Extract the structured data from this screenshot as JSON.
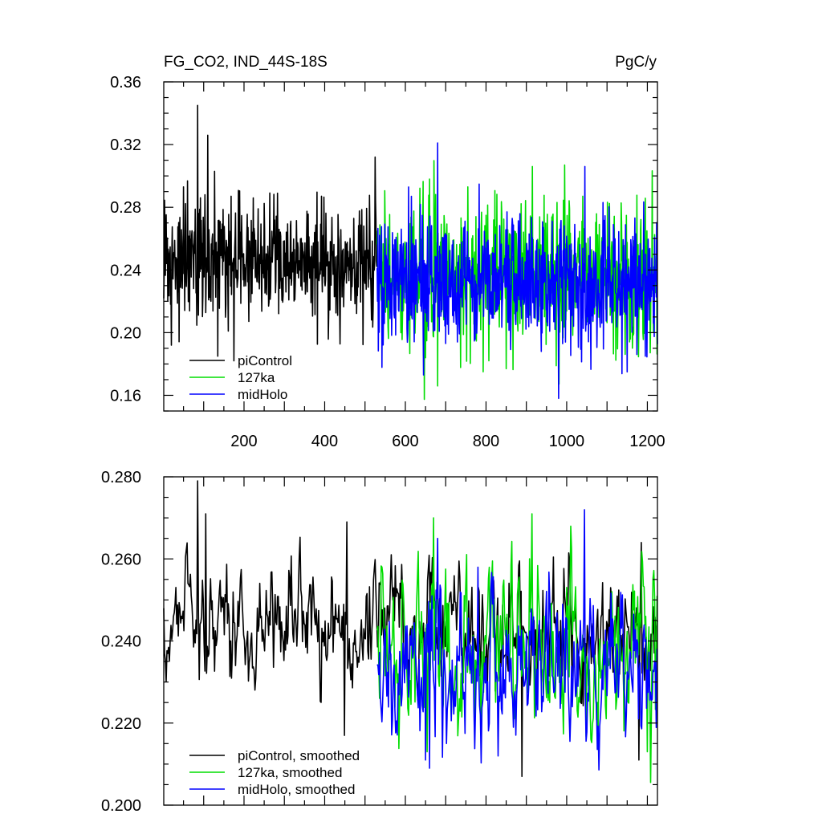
{
  "title_left": "FG_CO2, IND_44S-18S",
  "title_right": "PgC/y",
  "colors": {
    "piControl": "#000000",
    "127ka": "#00dd00",
    "midHolo": "#0000ff"
  },
  "chart_data": [
    {
      "type": "line",
      "panel": "raw annual series",
      "xlim": [
        1,
        1225
      ],
      "ylim": [
        0.15,
        0.36
      ],
      "x_ticks": [
        200,
        400,
        600,
        800,
        1000,
        1200
      ],
      "x_tick_labels": [
        "200",
        "400",
        "600",
        "800",
        "1000",
        "1200"
      ],
      "y_ticks": [
        0.16,
        0.2,
        0.24,
        0.28,
        0.32,
        0.36
      ],
      "y_tick_labels": [
        "0.16",
        "0.20",
        "0.24",
        "0.28",
        "0.32",
        "0.36"
      ],
      "legend": {
        "placement": "bottom-left",
        "entries": [
          "piControl",
          "127ka",
          "midHolo"
        ]
      },
      "series": [
        {
          "name": "piControl",
          "color": "#000000",
          "x_range": [
            1,
            530
          ],
          "step": 1,
          "mean": 0.245,
          "std": 0.019,
          "peaks": [
            [
              85,
              0.345
            ],
            [
              110,
              0.326
            ],
            [
              50,
              0.293
            ],
            [
              525,
              0.312
            ]
          ],
          "troughs": [
            [
              20,
              0.192
            ],
            [
              135,
              0.185
            ],
            [
              175,
              0.182
            ]
          ]
        },
        {
          "name": "127ka",
          "color": "#00dd00",
          "x_range": [
            530,
            1225
          ],
          "step": 1,
          "mean": 0.236,
          "std": 0.022,
          "peaks": [
            [
              915,
              0.306
            ],
            [
              995,
              0.307
            ],
            [
              660,
              0.298
            ],
            [
              755,
              0.293
            ]
          ],
          "troughs": [
            [
              680,
              0.166
            ],
            [
              650,
              0.184
            ],
            [
              850,
              0.177
            ]
          ]
        },
        {
          "name": "midHolo",
          "color": "#0000ff",
          "x_range": [
            530,
            1225
          ],
          "step": 1,
          "mean": 0.233,
          "std": 0.02,
          "peaks": [
            [
              680,
              0.321
            ],
            [
              1045,
              0.306
            ],
            [
              615,
              0.287
            ],
            [
              1090,
              0.283
            ]
          ],
          "troughs": [
            [
              645,
              0.173
            ],
            [
              1150,
              0.175
            ],
            [
              1195,
              0.185
            ]
          ]
        }
      ]
    },
    {
      "type": "line",
      "panel": "smoothed series",
      "xlim": [
        1,
        1225
      ],
      "ylim": [
        0.2,
        0.28
      ],
      "x_ticks": [
        200,
        400,
        600,
        800,
        1000,
        1200
      ],
      "y_ticks": [
        0.2,
        0.22,
        0.24,
        0.26,
        0.28
      ],
      "y_tick_labels": [
        "0.200",
        "0.220",
        "0.240",
        "0.260",
        "0.280"
      ],
      "legend": {
        "placement": "bottom-left",
        "entries": [
          "piControl, smoothed",
          "127ka, smoothed",
          "midHolo, smoothed"
        ]
      },
      "series": [
        {
          "name": "piControl, smoothed",
          "color": "#000000",
          "x_range": [
            1,
            1225
          ],
          "step": 2,
          "mean": 0.243,
          "std": 0.0075,
          "peaks": [
            [
              85,
              0.279
            ],
            [
              105,
              0.271
            ],
            [
              455,
              0.269
            ],
            [
              1185,
              0.264
            ]
          ],
          "troughs": [
            [
              450,
              0.217
            ],
            [
              890,
              0.207
            ],
            [
              1180,
              0.211
            ]
          ]
        },
        {
          "name": "127ka, smoothed",
          "color": "#00dd00",
          "x_range": [
            530,
            1225
          ],
          "step": 2,
          "mean": 0.238,
          "std": 0.01,
          "peaks": [
            [
              670,
              0.27
            ],
            [
              915,
              0.271
            ],
            [
              1010,
              0.268
            ]
          ],
          "troughs": [
            [
              655,
              0.213
            ],
            [
              1200,
              0.213
            ]
          ]
        },
        {
          "name": "midHolo, smoothed",
          "color": "#0000ff",
          "x_range": [
            530,
            1225
          ],
          "step": 2,
          "mean": 0.234,
          "std": 0.009,
          "peaks": [
            [
              1045,
              0.272
            ],
            [
              680,
              0.265
            ],
            [
              780,
              0.258
            ]
          ],
          "troughs": [
            [
              660,
              0.209
            ],
            [
              650,
              0.211
            ],
            [
              830,
              0.212
            ]
          ]
        }
      ]
    }
  ]
}
